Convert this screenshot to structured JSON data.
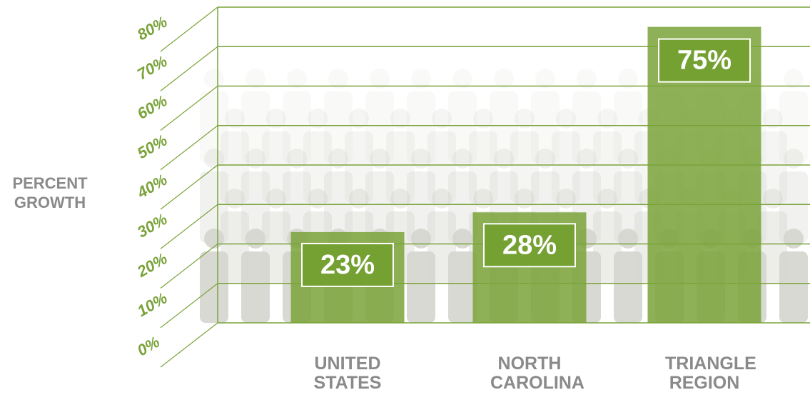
{
  "chart_data": {
    "type": "bar",
    "ylabel": "PERCENT GROWTH",
    "categories": [
      "UNITED STATES",
      "NORTH CAROLINA",
      "TRIANGLE REGION"
    ],
    "values": [
      23,
      28,
      75
    ],
    "value_labels": [
      "23%",
      "28%",
      "75%"
    ],
    "color": "#7aa33a",
    "ylim": [
      0,
      80
    ],
    "yticks": [
      {
        "value": 0,
        "label": "0%"
      },
      {
        "value": 10,
        "label": "10%"
      },
      {
        "value": 20,
        "label": "20%"
      },
      {
        "value": 30,
        "label": "30%"
      },
      {
        "value": 40,
        "label": "40%"
      },
      {
        "value": 50,
        "label": "50%"
      },
      {
        "value": 60,
        "label": "60%"
      },
      {
        "value": 70,
        "label": "70%"
      },
      {
        "value": 80,
        "label": "80%"
      }
    ],
    "grid": true
  }
}
